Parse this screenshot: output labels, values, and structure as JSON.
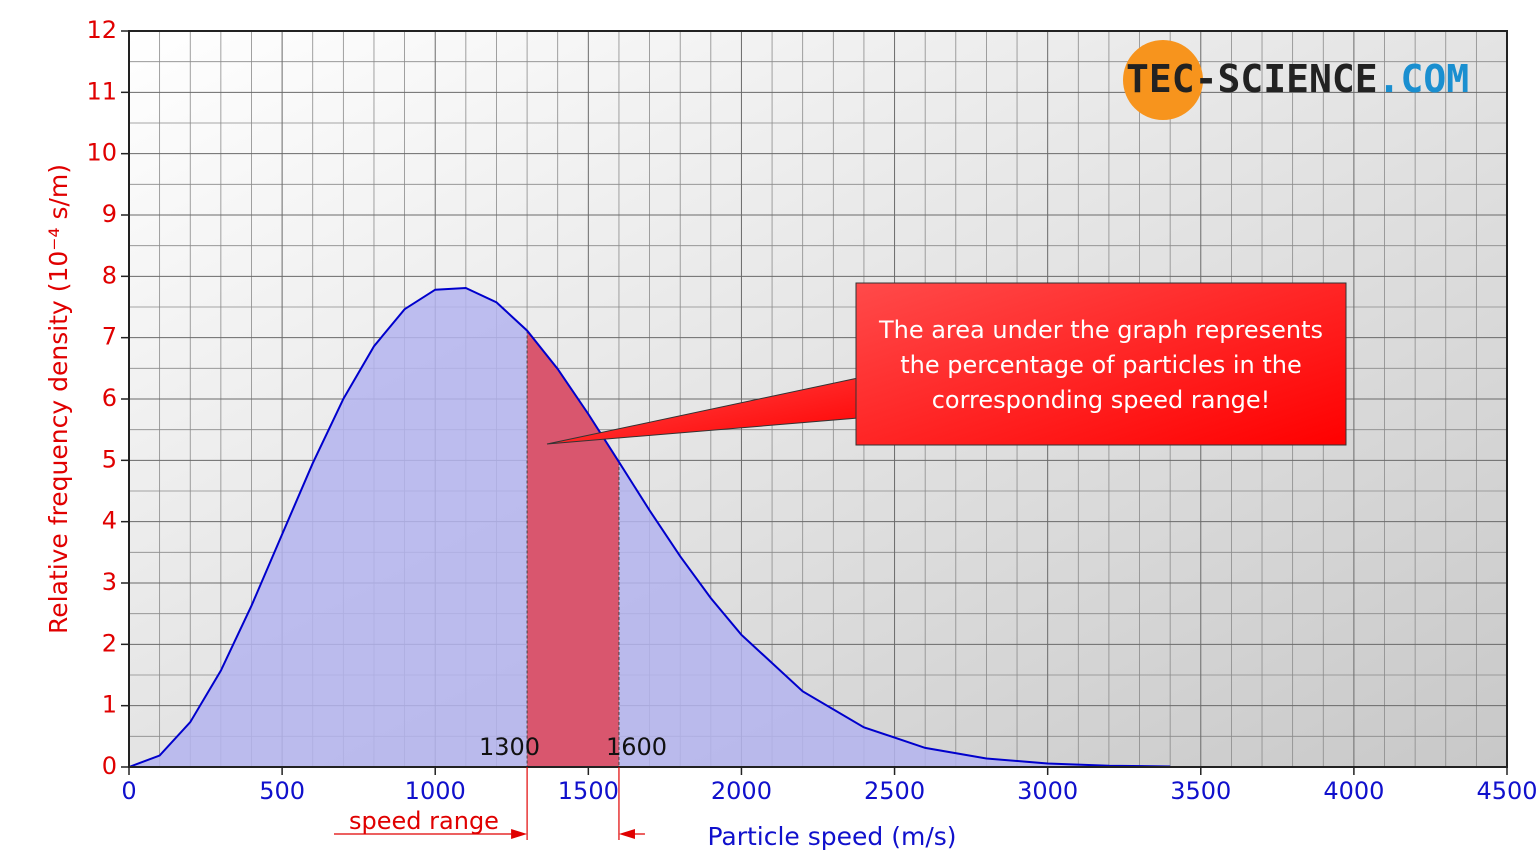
{
  "chart_data": {
    "type": "area",
    "x_label": "Particle speed (m/s)",
    "y_label": "Relative frequency density (10⁻⁴ s/m)",
    "x": [
      0,
      100,
      200,
      300,
      400,
      500,
      600,
      700,
      800,
      900,
      1000,
      1100,
      1200,
      1300,
      1400,
      1500,
      1600,
      1700,
      1800,
      1900,
      2000,
      2200,
      2400,
      2600,
      2800,
      3000,
      3200,
      3400
    ],
    "series": [
      {
        "color": "#0000cc",
        "fill": "#b4b4ee",
        "values": [
          0,
          0.188,
          0.731,
          1.574,
          2.63,
          3.792,
          4.952,
          6.003,
          6.861,
          7.464,
          7.782,
          7.81,
          7.575,
          7.116,
          6.489,
          5.756,
          4.972,
          4.184,
          3.435,
          2.753,
          2.156,
          1.235,
          0.648,
          0.312,
          0.138,
          0.057,
          0.021,
          0.0075
        ]
      }
    ],
    "highlight": {
      "from": 1300,
      "to": 1600,
      "color": "#d9566e",
      "label": "speed range"
    },
    "annotation": {
      "lines": [
        "The area under the graph represents",
        "the percentage of particles in the",
        "corresponding speed range!"
      ]
    },
    "logo": {
      "main": "TEC-SCIENCE",
      "suffix": ".COM"
    },
    "xlim": [
      0,
      4500
    ],
    "xticks": [
      0,
      500,
      1000,
      1500,
      2000,
      2500,
      3000,
      3500,
      4000,
      4500
    ],
    "ylim": [
      0,
      12
    ],
    "yticks": [
      0,
      1,
      2,
      3,
      4,
      5,
      6,
      7,
      8,
      9,
      10,
      11,
      12
    ],
    "grid": true
  }
}
